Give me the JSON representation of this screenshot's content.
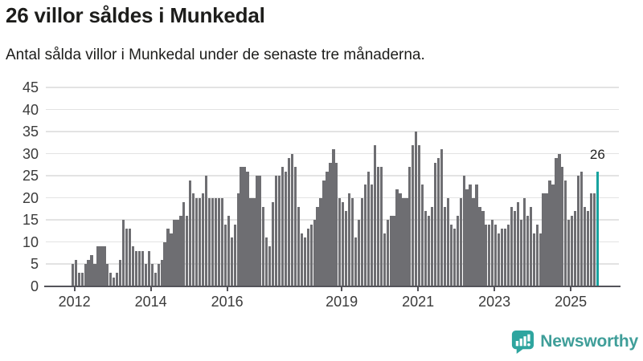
{
  "header": {
    "title": "26 villor såldes i Munkedal",
    "subtitle": "Antal sålda villor i Munkedal under de senaste tre månaderna."
  },
  "chart_data": {
    "type": "bar",
    "title": "26 villor såldes i Munkedal",
    "subtitle": "Antal sålda villor i Munkedal under de senaste tre månaderna.",
    "xlabel": "",
    "ylabel": "",
    "ylim": [
      0,
      45
    ],
    "yticks": [
      0,
      5,
      10,
      15,
      20,
      25,
      30,
      35,
      40,
      45
    ],
    "grid": "horizontal",
    "start_month": "2011-12",
    "end_month": "2025-09",
    "values": [
      5,
      6,
      3,
      3,
      5,
      6,
      7,
      5,
      9,
      9,
      9,
      5,
      3,
      2,
      3,
      6,
      15,
      13,
      13,
      9,
      8,
      8,
      8,
      5,
      8,
      5,
      3,
      5,
      6,
      10,
      13,
      12,
      15,
      15,
      16,
      19,
      16,
      24,
      21,
      20,
      20,
      21,
      25,
      20,
      20,
      20,
      20,
      20,
      14,
      16,
      11,
      14,
      21,
      27,
      27,
      26,
      20,
      20,
      25,
      25,
      18,
      11,
      9,
      19,
      25,
      25,
      27,
      26,
      29,
      30,
      27,
      18,
      12,
      11,
      13,
      14,
      15,
      18,
      20,
      24,
      26,
      28,
      31,
      28,
      20,
      19,
      17,
      21,
      20,
      11,
      15,
      20,
      23,
      26,
      23,
      32,
      27,
      27,
      12,
      15,
      16,
      16,
      22,
      21,
      20,
      20,
      27,
      32,
      35,
      32,
      23,
      17,
      16,
      18,
      28,
      29,
      31,
      18,
      20,
      14,
      13,
      16,
      20,
      25,
      22,
      23,
      20,
      23,
      18,
      17,
      14,
      14,
      15,
      14,
      12,
      13,
      13,
      14,
      18,
      17,
      19,
      15,
      20,
      16,
      18,
      12,
      14,
      12,
      21,
      21,
      24,
      23,
      29,
      30,
      27,
      24,
      15,
      16,
      17,
      25,
      26,
      18,
      17,
      21,
      21,
      26
    ],
    "xticks": [
      {
        "label": "2012",
        "month_index": 1
      },
      {
        "label": "2014",
        "month_index": 25
      },
      {
        "label": "2016",
        "month_index": 49
      },
      {
        "label": "2019",
        "month_index": 85
      },
      {
        "label": "2021",
        "month_index": 109
      },
      {
        "label": "2023",
        "month_index": 133
      },
      {
        "label": "2025",
        "month_index": 157
      }
    ],
    "highlight_last": true,
    "annotation": {
      "text": "26"
    },
    "colors": {
      "bar": "#6e6e72",
      "highlight": "#17a39f",
      "gridline": "#e3e3e3",
      "axis": "#54545a"
    }
  },
  "footer": {
    "brand": "Newsworthy",
    "brand_color": "#3f9e99",
    "icon_color": "#2ea59f"
  }
}
